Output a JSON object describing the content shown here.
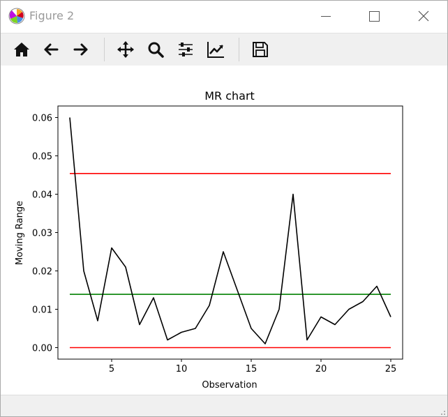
{
  "window": {
    "title": "Figure 2",
    "controls": {
      "minimize": "minimize",
      "maximize": "maximize",
      "close": "close"
    }
  },
  "toolbar": {
    "buttons": [
      {
        "name": "home-button",
        "icon": "home-icon"
      },
      {
        "name": "back-button",
        "icon": "arrow-left-icon"
      },
      {
        "name": "forward-button",
        "icon": "arrow-right-icon"
      },
      {
        "name": "pan-button",
        "icon": "move-icon"
      },
      {
        "name": "zoom-button",
        "icon": "magnifier-icon"
      },
      {
        "name": "subplots-button",
        "icon": "sliders-icon"
      },
      {
        "name": "edit-axes-button",
        "icon": "chart-line-icon"
      },
      {
        "name": "save-button",
        "icon": "floppy-disk-icon"
      }
    ]
  },
  "chart_data": {
    "type": "line",
    "title": "MR chart",
    "xlabel": "Observation",
    "ylabel": "Moving Range",
    "xlim": [
      1.15,
      25.85
    ],
    "ylim": [
      -0.003,
      0.063
    ],
    "xticks": [
      5,
      10,
      15,
      20,
      25
    ],
    "yticks": [
      "0.00",
      "0.01",
      "0.02",
      "0.03",
      "0.04",
      "0.05",
      "0.06"
    ],
    "grid": false,
    "legend": "none",
    "series": [
      {
        "color": "#000000",
        "x": [
          2,
          3,
          4,
          5,
          6,
          7,
          8,
          9,
          10,
          11,
          12,
          13,
          14,
          15,
          16,
          17,
          18,
          19,
          20,
          21,
          22,
          23,
          24,
          25
        ],
        "values": [
          0.06,
          0.02,
          0.007,
          0.026,
          0.021,
          0.006,
          0.013,
          0.002,
          0.004,
          0.005,
          0.011,
          0.025,
          0.015,
          0.005,
          0.001,
          0.01,
          0.04,
          0.002,
          0.008,
          0.006,
          0.01,
          0.012,
          0.016,
          0.008
        ]
      }
    ],
    "reference_lines": [
      {
        "y": 0.0454,
        "x": [
          2,
          25
        ],
        "color": "#ff0000"
      },
      {
        "y": 0.0139,
        "x": [
          2,
          25
        ],
        "color": "#008000"
      },
      {
        "y": 0.0,
        "x": [
          2,
          25
        ],
        "color": "#ff0000"
      }
    ]
  }
}
